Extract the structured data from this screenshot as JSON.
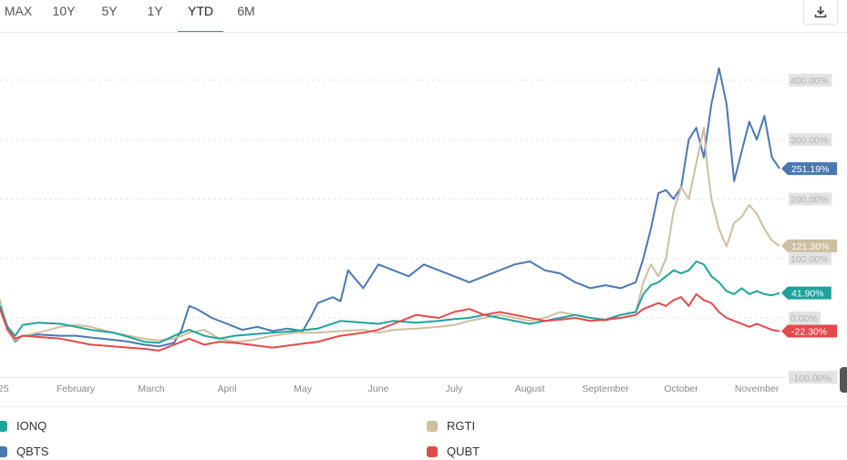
{
  "tabs": [
    {
      "label": "MAX",
      "active": false
    },
    {
      "label": "10Y",
      "active": false
    },
    {
      "label": "5Y",
      "active": false
    },
    {
      "label": "1Y",
      "active": false
    },
    {
      "label": "YTD",
      "active": true
    },
    {
      "label": "6M",
      "active": false
    }
  ],
  "download_icon": "download-icon",
  "chart_data": {
    "type": "line",
    "x_unit": "month",
    "xlim": [
      0,
      10.3
    ],
    "ylim": [
      -100,
      450
    ],
    "x_ticks": [
      {
        "x": 0,
        "label": "25"
      },
      {
        "x": 1,
        "label": "February"
      },
      {
        "x": 2,
        "label": "March"
      },
      {
        "x": 3,
        "label": "April"
      },
      {
        "x": 4,
        "label": "May"
      },
      {
        "x": 5,
        "label": "June"
      },
      {
        "x": 6,
        "label": "July"
      },
      {
        "x": 7,
        "label": "August"
      },
      {
        "x": 8,
        "label": "September"
      },
      {
        "x": 9,
        "label": "October"
      },
      {
        "x": 10,
        "label": "November"
      }
    ],
    "y_ticks": [
      {
        "y": 400,
        "label": "400.00%"
      },
      {
        "y": 300,
        "label": "300.00%"
      },
      {
        "y": 200,
        "label": "200.00%"
      },
      {
        "y": 100,
        "label": "100.00%"
      },
      {
        "y": 0,
        "label": "0.00%"
      },
      {
        "y": -100,
        "label": "-100.00%"
      }
    ],
    "series": [
      {
        "name": "QBTS",
        "color": "#4a78b4",
        "end_label": "251.19%",
        "points": [
          [
            0,
            20
          ],
          [
            0.1,
            -20
          ],
          [
            0.2,
            -40
          ],
          [
            0.3,
            -30
          ],
          [
            0.5,
            -28
          ],
          [
            0.8,
            -30
          ],
          [
            1.0,
            -30
          ],
          [
            1.2,
            -33
          ],
          [
            1.5,
            -37
          ],
          [
            1.7,
            -40
          ],
          [
            1.9,
            -45
          ],
          [
            2.1,
            -48
          ],
          [
            2.3,
            -42
          ],
          [
            2.4,
            -20
          ],
          [
            2.5,
            20
          ],
          [
            2.6,
            15
          ],
          [
            2.8,
            0
          ],
          [
            3.0,
            -10
          ],
          [
            3.2,
            -20
          ],
          [
            3.4,
            -15
          ],
          [
            3.6,
            -22
          ],
          [
            3.8,
            -18
          ],
          [
            4.0,
            -22
          ],
          [
            4.1,
            0
          ],
          [
            4.2,
            25
          ],
          [
            4.4,
            35
          ],
          [
            4.5,
            28
          ],
          [
            4.6,
            80
          ],
          [
            4.8,
            50
          ],
          [
            5.0,
            90
          ],
          [
            5.2,
            80
          ],
          [
            5.4,
            70
          ],
          [
            5.6,
            90
          ],
          [
            5.8,
            80
          ],
          [
            6.0,
            70
          ],
          [
            6.2,
            60
          ],
          [
            6.4,
            70
          ],
          [
            6.6,
            80
          ],
          [
            6.8,
            90
          ],
          [
            7.0,
            95
          ],
          [
            7.2,
            80
          ],
          [
            7.4,
            75
          ],
          [
            7.6,
            60
          ],
          [
            7.8,
            50
          ],
          [
            8.0,
            55
          ],
          [
            8.2,
            50
          ],
          [
            8.4,
            60
          ],
          [
            8.5,
            100
          ],
          [
            8.6,
            150
          ],
          [
            8.7,
            210
          ],
          [
            8.8,
            215
          ],
          [
            8.9,
            200
          ],
          [
            9.0,
            220
          ],
          [
            9.1,
            300
          ],
          [
            9.2,
            320
          ],
          [
            9.3,
            270
          ],
          [
            9.4,
            360
          ],
          [
            9.5,
            420
          ],
          [
            9.6,
            360
          ],
          [
            9.7,
            230
          ],
          [
            9.8,
            280
          ],
          [
            9.9,
            330
          ],
          [
            10.0,
            300
          ],
          [
            10.1,
            340
          ],
          [
            10.2,
            270
          ],
          [
            10.3,
            251.19
          ]
        ]
      },
      {
        "name": "RGTI",
        "color": "#cdbfa0",
        "end_label": "121.30%",
        "points": [
          [
            0,
            30
          ],
          [
            0.1,
            -20
          ],
          [
            0.2,
            -38
          ],
          [
            0.3,
            -30
          ],
          [
            0.5,
            -25
          ],
          [
            0.8,
            -15
          ],
          [
            1.0,
            -12
          ],
          [
            1.2,
            -15
          ],
          [
            1.5,
            -25
          ],
          [
            1.7,
            -30
          ],
          [
            1.9,
            -35
          ],
          [
            2.1,
            -38
          ],
          [
            2.3,
            -35
          ],
          [
            2.5,
            -25
          ],
          [
            2.7,
            -20
          ],
          [
            2.9,
            -35
          ],
          [
            3.1,
            -40
          ],
          [
            3.3,
            -38
          ],
          [
            3.6,
            -30
          ],
          [
            3.9,
            -25
          ],
          [
            4.2,
            -25
          ],
          [
            4.5,
            -22
          ],
          [
            4.8,
            -20
          ],
          [
            5.0,
            -25
          ],
          [
            5.2,
            -20
          ],
          [
            5.5,
            -18
          ],
          [
            5.8,
            -15
          ],
          [
            6.0,
            -12
          ],
          [
            6.2,
            -5
          ],
          [
            6.4,
            0
          ],
          [
            6.6,
            5
          ],
          [
            6.8,
            0
          ],
          [
            7.0,
            -5
          ],
          [
            7.2,
            0
          ],
          [
            7.4,
            10
          ],
          [
            7.6,
            5
          ],
          [
            7.8,
            0
          ],
          [
            8.0,
            -5
          ],
          [
            8.2,
            5
          ],
          [
            8.4,
            10
          ],
          [
            8.5,
            60
          ],
          [
            8.6,
            90
          ],
          [
            8.7,
            70
          ],
          [
            8.8,
            100
          ],
          [
            8.9,
            180
          ],
          [
            9.0,
            220
          ],
          [
            9.1,
            200
          ],
          [
            9.2,
            260
          ],
          [
            9.3,
            320
          ],
          [
            9.35,
            250
          ],
          [
            9.4,
            200
          ],
          [
            9.5,
            150
          ],
          [
            9.6,
            120
          ],
          [
            9.7,
            160
          ],
          [
            9.8,
            170
          ],
          [
            9.9,
            190
          ],
          [
            10.0,
            175
          ],
          [
            10.1,
            150
          ],
          [
            10.2,
            130
          ],
          [
            10.3,
            121.3
          ]
        ]
      },
      {
        "name": "IONQ",
        "color": "#1fa39a",
        "end_label": "41.90%",
        "points": [
          [
            0,
            20
          ],
          [
            0.1,
            -15
          ],
          [
            0.2,
            -30
          ],
          [
            0.3,
            -12
          ],
          [
            0.5,
            -8
          ],
          [
            0.8,
            -10
          ],
          [
            1.0,
            -15
          ],
          [
            1.2,
            -20
          ],
          [
            1.5,
            -25
          ],
          [
            1.7,
            -32
          ],
          [
            1.9,
            -40
          ],
          [
            2.1,
            -42
          ],
          [
            2.3,
            -30
          ],
          [
            2.5,
            -20
          ],
          [
            2.7,
            -30
          ],
          [
            2.9,
            -35
          ],
          [
            3.1,
            -30
          ],
          [
            3.3,
            -28
          ],
          [
            3.6,
            -25
          ],
          [
            3.9,
            -22
          ],
          [
            4.2,
            -18
          ],
          [
            4.5,
            -5
          ],
          [
            4.8,
            -8
          ],
          [
            5.0,
            -10
          ],
          [
            5.2,
            -5
          ],
          [
            5.5,
            -8
          ],
          [
            5.8,
            -5
          ],
          [
            6.0,
            -2
          ],
          [
            6.2,
            0
          ],
          [
            6.4,
            5
          ],
          [
            6.6,
            0
          ],
          [
            6.8,
            -5
          ],
          [
            7.0,
            -10
          ],
          [
            7.2,
            -5
          ],
          [
            7.4,
            0
          ],
          [
            7.6,
            5
          ],
          [
            7.8,
            0
          ],
          [
            8.0,
            -3
          ],
          [
            8.2,
            5
          ],
          [
            8.4,
            10
          ],
          [
            8.5,
            40
          ],
          [
            8.6,
            55
          ],
          [
            8.7,
            60
          ],
          [
            8.8,
            70
          ],
          [
            8.9,
            80
          ],
          [
            9.0,
            75
          ],
          [
            9.1,
            80
          ],
          [
            9.2,
            95
          ],
          [
            9.3,
            90
          ],
          [
            9.4,
            70
          ],
          [
            9.5,
            60
          ],
          [
            9.6,
            45
          ],
          [
            9.7,
            40
          ],
          [
            9.8,
            50
          ],
          [
            9.9,
            40
          ],
          [
            10.0,
            45
          ],
          [
            10.1,
            40
          ],
          [
            10.2,
            38
          ],
          [
            10.3,
            41.9
          ]
        ]
      },
      {
        "name": "QUBT",
        "color": "#e24b4b",
        "end_label": "-22.30%",
        "points": [
          [
            0,
            15
          ],
          [
            0.1,
            -20
          ],
          [
            0.2,
            -35
          ],
          [
            0.3,
            -30
          ],
          [
            0.5,
            -32
          ],
          [
            0.8,
            -35
          ],
          [
            1.0,
            -40
          ],
          [
            1.2,
            -45
          ],
          [
            1.5,
            -48
          ],
          [
            1.7,
            -50
          ],
          [
            1.9,
            -52
          ],
          [
            2.1,
            -55
          ],
          [
            2.3,
            -45
          ],
          [
            2.5,
            -35
          ],
          [
            2.7,
            -45
          ],
          [
            2.9,
            -40
          ],
          [
            3.1,
            -42
          ],
          [
            3.3,
            -45
          ],
          [
            3.6,
            -50
          ],
          [
            3.9,
            -45
          ],
          [
            4.2,
            -40
          ],
          [
            4.5,
            -30
          ],
          [
            4.8,
            -25
          ],
          [
            5.0,
            -20
          ],
          [
            5.2,
            -10
          ],
          [
            5.5,
            5
          ],
          [
            5.8,
            0
          ],
          [
            6.0,
            10
          ],
          [
            6.2,
            15
          ],
          [
            6.4,
            5
          ],
          [
            6.6,
            10
          ],
          [
            6.8,
            5
          ],
          [
            7.0,
            0
          ],
          [
            7.2,
            -5
          ],
          [
            7.4,
            -3
          ],
          [
            7.6,
            0
          ],
          [
            7.8,
            -5
          ],
          [
            8.0,
            -3
          ],
          [
            8.2,
            0
          ],
          [
            8.4,
            5
          ],
          [
            8.5,
            15
          ],
          [
            8.6,
            20
          ],
          [
            8.7,
            25
          ],
          [
            8.8,
            20
          ],
          [
            8.9,
            30
          ],
          [
            9.0,
            35
          ],
          [
            9.1,
            20
          ],
          [
            9.2,
            40
          ],
          [
            9.3,
            30
          ],
          [
            9.4,
            25
          ],
          [
            9.5,
            10
          ],
          [
            9.6,
            0
          ],
          [
            9.7,
            -5
          ],
          [
            9.8,
            -10
          ],
          [
            9.9,
            -15
          ],
          [
            10.0,
            -10
          ],
          [
            10.1,
            -15
          ],
          [
            10.2,
            -20
          ],
          [
            10.3,
            -22.3
          ]
        ]
      }
    ]
  },
  "legend": [
    {
      "name": "IONQ",
      "color": "#1fa39a"
    },
    {
      "name": "RGTI",
      "color": "#cdbfa0"
    },
    {
      "name": "QBTS",
      "color": "#4a78b4"
    },
    {
      "name": "QUBT",
      "color": "#e24b4b"
    }
  ]
}
